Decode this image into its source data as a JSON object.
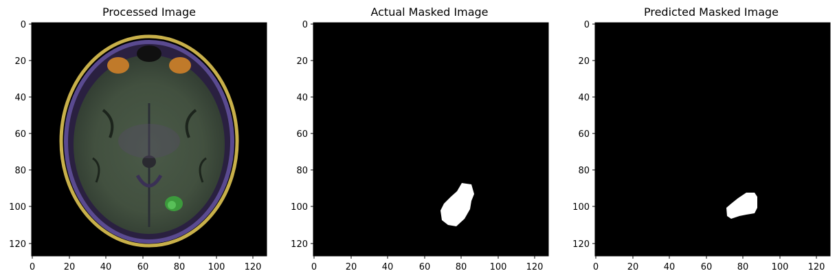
{
  "panels": [
    {
      "title": "Processed Image",
      "image_description": "Axial brain MRI in false color",
      "x_ticks": [
        "0",
        "20",
        "40",
        "60",
        "80",
        "100",
        "120"
      ],
      "y_ticks": [
        "0",
        "20",
        "40",
        "60",
        "80",
        "100",
        "120"
      ]
    },
    {
      "title": "Actual Masked Image",
      "x_ticks": [
        "0",
        "20",
        "40",
        "60",
        "80",
        "100",
        "120"
      ],
      "y_ticks": [
        "0",
        "20",
        "40",
        "60",
        "80",
        "100",
        "120"
      ]
    },
    {
      "title": "Predicted Masked Image",
      "x_ticks": [
        "0",
        "20",
        "40",
        "60",
        "80",
        "100",
        "120"
      ],
      "y_ticks": [
        "0",
        "20",
        "40",
        "60",
        "80",
        "100",
        "120"
      ]
    }
  ],
  "colors": {
    "background": "#ffffff",
    "image_bg": "#000000",
    "mask": "#ffffff",
    "axis": "#000000"
  }
}
